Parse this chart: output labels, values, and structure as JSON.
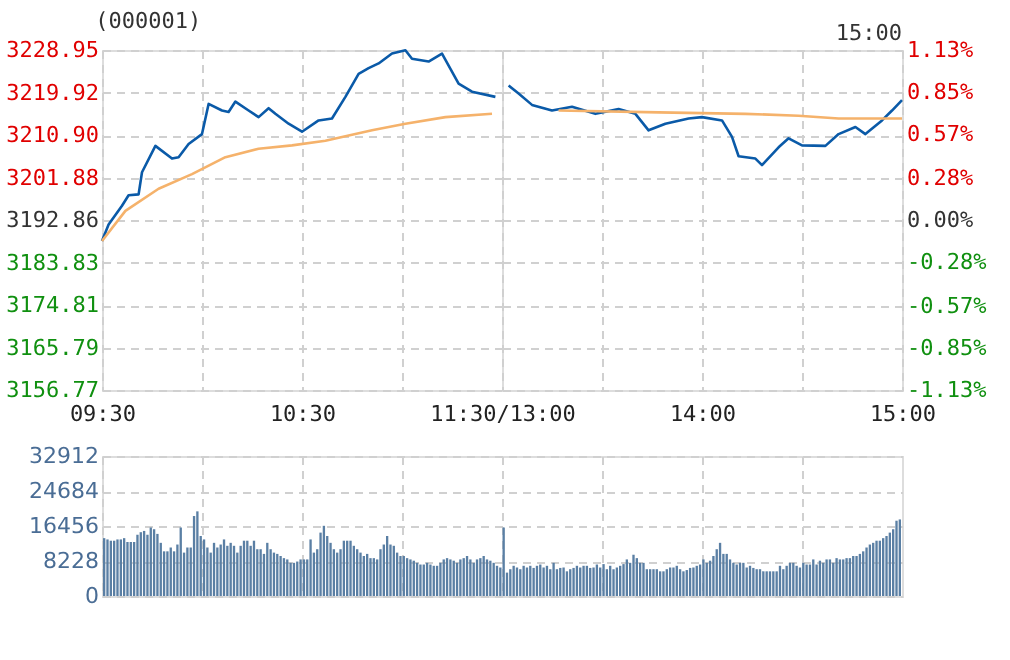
{
  "chart_data": [
    {
      "type": "line",
      "title": "(000001)",
      "xlim": [
        9.5,
        11.5
      ],
      "xticks": [
        {
          "value": 9.5,
          "label": "09:30"
        },
        {
          "value": 10,
          "label": null
        },
        {
          "value": 10.5,
          "label": "10:30"
        },
        {
          "value": 11,
          "label": null
        },
        {
          "value": 11.5,
          "label": "11:30/13:00"
        }
      ],
      "ylim": [
        3156.77,
        3228.95
      ],
      "yticks": [
        {
          "value": 3156.77,
          "label": "3156.77"
        },
        {
          "value": 3165.79,
          "label": "3165.79"
        },
        {
          "value": 3174.81,
          "label": "3174.81"
        },
        {
          "value": 3183.83,
          "label": "3183.83"
        },
        {
          "value": 3192.86,
          "label": "3192.86"
        },
        {
          "value": 3201.88,
          "label": "3201.88"
        },
        {
          "value": 3210.9,
          "label": "3210.90"
        },
        {
          "value": 3219.92,
          "label": "3219.92"
        },
        {
          "value": 3228.95,
          "label": "3228.95"
        }
      ],
      "grid": true,
      "series": [
        {
          "color": "#0a5aa8",
          "x": [
            9.5,
            9.533,
            9.6,
            9.633,
            9.683,
            9.7,
            9.767,
            9.85,
            9.883,
            9.933,
            10,
            10.033,
            10.1,
            10.133,
            10.167,
            10.233,
            10.283,
            10.333,
            10.367,
            10.433,
            10.5,
            10.583,
            10.65,
            10.717,
            10.783,
            10.833,
            10.883,
            10.95,
            11.017,
            11.05,
            11.133,
            11.2,
            11.283,
            11.35,
            11.467
          ],
          "values": [
            3188.4,
            3191.9,
            3195.9,
            3198.1,
            3198.3,
            3203.0,
            3208.6,
            3205.9,
            3206.2,
            3209.0,
            3211.1,
            3217.5,
            3216.1,
            3215.8,
            3218.0,
            3216.1,
            3214.7,
            3216.6,
            3215.4,
            3213.3,
            3211.6,
            3214.0,
            3214.4,
            3219.0,
            3223.9,
            3225.1,
            3226.1,
            3228.2,
            3228.9,
            3227.1,
            3226.5,
            3228.2,
            3221.8,
            3220.1,
            3219.0
          ]
        },
        {
          "color": "#f5b26b",
          "x": [
            9.5,
            9.617,
            9.783,
            9.95,
            10.117,
            10.283,
            10.45,
            10.617,
            10.85,
            11.017,
            11.217,
            11.45
          ],
          "values": [
            3188.4,
            3194.8,
            3199.5,
            3202.6,
            3206.2,
            3208.0,
            3208.7,
            3209.7,
            3211.9,
            3213.3,
            3214.7,
            3215.4
          ]
        }
      ]
    },
    {
      "type": "line",
      "annotations": [
        "15:00"
      ],
      "tick_labels": "x",
      "xlim": [
        13,
        15
      ],
      "xticks": [
        {
          "value": 13,
          "label": null
        },
        {
          "value": 13.5,
          "label": null
        },
        {
          "value": 14,
          "label": "14:00"
        },
        {
          "value": 14.5,
          "label": null
        },
        {
          "value": 15,
          "label": "15:00"
        }
      ],
      "ylim": [
        3156.77,
        3228.95
      ],
      "yticks": [
        {
          "value": 3156.77,
          "label": null
        },
        {
          "value": 3165.79,
          "label": null
        },
        {
          "value": 3174.81,
          "label": null
        },
        {
          "value": 3183.83,
          "label": null
        },
        {
          "value": 3192.86,
          "label": null
        },
        {
          "value": 3201.88,
          "label": null
        },
        {
          "value": 3210.9,
          "label": null
        },
        {
          "value": 3219.92,
          "label": null
        },
        {
          "value": 3228.95,
          "label": null
        }
      ],
      "y2lim": [
        -1.13,
        1.13
      ],
      "y2ticks": [
        {
          "value": -1.13,
          "label": "-1.13%"
        },
        {
          "value": -0.85,
          "label": "-0.85%"
        },
        {
          "value": -0.57,
          "label": "-0.57%"
        },
        {
          "value": -0.28,
          "label": "-0.28%"
        },
        {
          "value": 0,
          "label": "0.00%"
        },
        {
          "value": 0.28,
          "label": "0.28%"
        },
        {
          "value": 0.57,
          "label": "0.57%"
        },
        {
          "value": 0.85,
          "label": "0.85%"
        },
        {
          "value": 1.13,
          "label": "1.13%"
        }
      ],
      "grid": true,
      "series": [
        {
          "color": "#0a5aa8",
          "x": [
            13.033,
            13.083,
            13.15,
            13.25,
            13.35,
            13.467,
            13.583,
            13.667,
            13.733,
            13.817,
            13.933,
            14,
            14.1,
            14.15,
            14.183,
            14.267,
            14.3,
            14.383,
            14.433,
            14.5,
            14.617,
            14.683,
            14.767,
            14.817,
            14.9,
            14.95,
            15
          ],
          "values": [
            3221.4,
            3219.7,
            3217.3,
            3216.1,
            3216.9,
            3215.4,
            3216.4,
            3215.4,
            3211.9,
            3213.3,
            3214.4,
            3214.7,
            3214.0,
            3210.5,
            3206.4,
            3205.9,
            3204.5,
            3208.3,
            3210.2,
            3208.7,
            3208.6,
            3211.1,
            3212.6,
            3211.1,
            3214.0,
            3216.1,
            3218.3
          ]
        },
        {
          "color": "#f5b26b",
          "x": [
            13.283,
            13.783,
            14.217,
            14.483,
            14.683,
            15
          ],
          "values": [
            3216.1,
            3215.7,
            3215.4,
            3215.0,
            3214.4,
            3214.4
          ]
        }
      ]
    },
    {
      "type": "bar",
      "tick_labels": "y",
      "grid": true,
      "ylim": [
        0,
        32912
      ],
      "yticks": [
        0,
        8228,
        16456,
        24684,
        32912
      ],
      "categories": [
        null,
        null,
        null,
        null,
        null,
        null,
        null,
        null,
        null,
        null,
        null,
        null,
        null,
        null,
        null,
        null,
        null,
        null,
        null,
        null,
        null,
        null,
        null,
        null,
        null,
        null,
        null,
        null,
        null,
        null,
        null,
        null,
        null,
        null,
        null,
        null,
        null,
        null,
        null,
        null,
        null,
        null,
        null,
        null,
        null,
        null,
        null,
        null,
        null,
        null,
        null,
        null,
        null,
        null,
        null,
        null,
        null,
        null,
        null,
        null,
        null,
        null,
        null,
        null,
        null,
        null,
        null,
        null,
        null,
        null,
        null,
        null,
        null,
        null,
        null,
        null,
        null,
        null,
        null,
        null,
        null,
        null,
        null,
        null,
        null,
        null,
        null,
        null,
        null,
        null,
        null,
        null,
        null,
        null,
        null,
        null,
        null,
        null,
        null,
        null,
        null,
        null,
        null,
        null,
        null,
        null,
        null,
        null,
        null,
        null,
        null,
        null,
        null,
        null,
        null,
        null,
        null,
        null,
        null,
        null,
        null,
        null,
        null,
        null,
        null,
        null,
        null,
        null,
        null,
        null,
        null,
        null,
        null,
        null,
        null,
        null,
        null,
        null,
        null,
        null,
        null,
        null,
        null,
        null,
        null,
        null,
        null,
        null,
        null,
        null,
        null,
        null,
        null,
        null,
        null,
        null,
        null,
        null,
        null,
        null,
        null,
        null,
        null,
        null,
        null,
        null,
        null,
        null,
        null,
        null,
        null,
        null,
        null,
        null,
        null,
        null,
        null,
        null,
        null,
        null,
        null,
        null,
        null,
        null,
        null,
        null,
        null,
        null,
        null,
        null,
        null,
        null,
        null,
        null,
        null,
        null,
        null,
        null,
        null,
        null,
        null,
        null,
        null,
        null,
        null,
        null,
        null,
        null,
        null,
        null,
        null,
        null,
        null,
        null,
        null,
        null,
        null,
        null,
        null,
        null,
        null,
        null,
        null,
        null,
        null,
        null,
        null,
        null,
        null,
        null,
        null,
        null,
        null,
        null,
        null,
        null,
        null,
        null,
        null,
        null
      ],
      "color": "#5a7fa4",
      "values": [
        13600,
        13300,
        13000,
        13000,
        13300,
        13300,
        13600,
        12700,
        12700,
        12700,
        14400,
        15000,
        15300,
        14400,
        16100,
        15700,
        14600,
        12500,
        10500,
        10500,
        11400,
        10500,
        12100,
        16100,
        10200,
        11400,
        11400,
        18800,
        19900,
        14100,
        13300,
        11400,
        10200,
        12500,
        11400,
        12100,
        13300,
        11800,
        12500,
        11800,
        10200,
        11800,
        13000,
        13000,
        11800,
        13000,
        11000,
        11000,
        9900,
        12500,
        11000,
        10200,
        9900,
        9400,
        8900,
        8600,
        7800,
        7800,
        8100,
        8600,
        8600,
        8600,
        13300,
        10200,
        11000,
        14900,
        16500,
        14100,
        12500,
        11000,
        10200,
        11000,
        13000,
        13000,
        13000,
        11800,
        11000,
        10200,
        9400,
        9900,
        8900,
        8900,
        8600,
        11000,
        12100,
        14100,
        12100,
        11800,
        10200,
        9400,
        9400,
        8900,
        8600,
        8300,
        7800,
        7400,
        7400,
        7800,
        7400,
        7100,
        7100,
        7800,
        8600,
        8900,
        8600,
        8300,
        7800,
        8600,
        8900,
        9400,
        8600,
        7800,
        8600,
        8900,
        9400,
        8600,
        8300,
        7800,
        7100,
        6700,
        16100,
        5500,
        6300,
        7100,
        6700,
        6300,
        7100,
        6700,
        7100,
        6600,
        7100,
        7400,
        6700,
        7100,
        6300,
        7800,
        6300,
        6600,
        6700,
        5800,
        6300,
        6600,
        7100,
        6700,
        7100,
        7100,
        6600,
        6700,
        7400,
        6700,
        7500,
        6300,
        7100,
        6300,
        6700,
        7100,
        7500,
        8600,
        7800,
        9700,
        8900,
        7800,
        7800,
        6300,
        6300,
        6300,
        6300,
        5800,
        5800,
        6300,
        6700,
        6700,
        7100,
        6300,
        5800,
        6100,
        6600,
        6700,
        7100,
        7400,
        8600,
        7800,
        8300,
        9400,
        11000,
        12500,
        9900,
        9900,
        8600,
        7800,
        7400,
        7800,
        7800,
        6700,
        7100,
        6600,
        6300,
        6300,
        5800,
        5800,
        5800,
        5800,
        5800,
        7100,
        6300,
        7100,
        7800,
        7800,
        7100,
        6700,
        7800,
        7400,
        7400,
        8600,
        7400,
        8300,
        7800,
        8600,
        8600,
        7800,
        8900,
        8600,
        8600,
        8900,
        8900,
        9400,
        9400,
        9900,
        10500,
        11400,
        12100,
        12500,
        13000,
        13000,
        13600,
        14100,
        14900,
        15700,
        17700,
        18000
      ]
    }
  ]
}
